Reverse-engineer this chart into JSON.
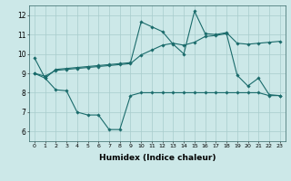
{
  "x": [
    0,
    1,
    2,
    3,
    4,
    5,
    6,
    7,
    8,
    9,
    10,
    11,
    12,
    13,
    14,
    15,
    16,
    17,
    18,
    19,
    20,
    21,
    22,
    23
  ],
  "line1": [
    9.8,
    8.75,
    9.2,
    9.25,
    9.3,
    9.35,
    9.4,
    9.45,
    9.5,
    9.55,
    11.65,
    11.4,
    11.15,
    10.5,
    10.0,
    12.2,
    11.05,
    11.0,
    11.1,
    10.55,
    10.5,
    10.55,
    10.6,
    10.65
  ],
  "line2": [
    9.0,
    8.85,
    9.15,
    9.2,
    9.25,
    9.3,
    9.35,
    9.4,
    9.45,
    9.5,
    9.95,
    10.2,
    10.45,
    10.55,
    10.45,
    10.6,
    10.9,
    10.95,
    11.05,
    8.9,
    8.35,
    8.75,
    7.9,
    7.85
  ],
  "line3": [
    9.0,
    8.75,
    8.15,
    8.1,
    7.0,
    6.85,
    6.85,
    6.1,
    6.1,
    7.85,
    8.0,
    8.0,
    8.0,
    8.0,
    8.0,
    8.0,
    8.0,
    8.0,
    8.0,
    8.0,
    8.0,
    8.0,
    7.85,
    7.85
  ],
  "bg_color": "#cce8e8",
  "line_color": "#1a6b6b",
  "grid_color": "#a8cccc",
  "xlabel": "Humidex (Indice chaleur)",
  "ylim": [
    5.5,
    12.5
  ],
  "xlim": [
    -0.5,
    23.5
  ],
  "yticks": [
    6,
    7,
    8,
    9,
    10,
    11,
    12
  ],
  "xticks": [
    0,
    1,
    2,
    3,
    4,
    5,
    6,
    7,
    8,
    9,
    10,
    11,
    12,
    13,
    14,
    15,
    16,
    17,
    18,
    19,
    20,
    21,
    22,
    23
  ],
  "xtick_labels": [
    "0",
    "1",
    "2",
    "3",
    "4",
    "5",
    "6",
    "7",
    "8",
    "9",
    "10",
    "11",
    "12",
    "13",
    "14",
    "15",
    "16",
    "17",
    "18",
    "19",
    "20",
    "21",
    "22",
    "23"
  ]
}
